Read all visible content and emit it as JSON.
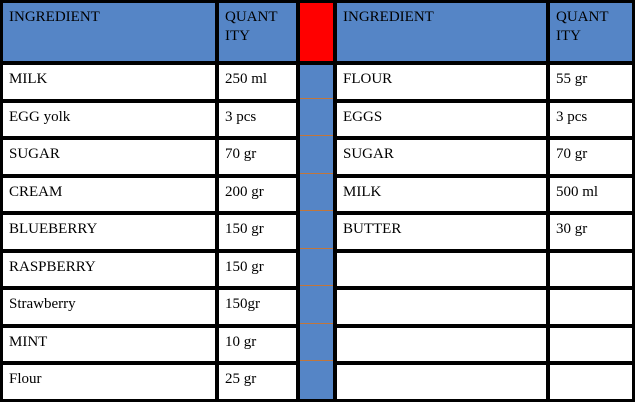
{
  "colors": {
    "table_header_blue": "#5585C6",
    "divider_red": "#FF0000",
    "divider_blue": "#5585C6",
    "divider_separator_orange": "#C0763C",
    "grid_border_black": "#000000",
    "cell_white": "#FFFFFF"
  },
  "left_table": {
    "headers": {
      "ingredient": "INGREDIENT",
      "quantity": "QUANTITY"
    },
    "rows": [
      {
        "ingredient": "MILK",
        "quantity": "250 ml"
      },
      {
        "ingredient": "EGG yolk",
        "quantity": "3 pcs"
      },
      {
        "ingredient": "SUGAR",
        "quantity": "70 gr"
      },
      {
        "ingredient": "CREAM",
        "quantity": "200 gr"
      },
      {
        "ingredient": "BLUEBERRY",
        "quantity": "150 gr"
      },
      {
        "ingredient": "RASPBERRY",
        "quantity": "150 gr"
      },
      {
        "ingredient": "Strawberry",
        "quantity": "150gr"
      },
      {
        "ingredient": "MINT",
        "quantity": "10 gr"
      },
      {
        "ingredient": "Flour",
        "quantity": "25 gr"
      }
    ]
  },
  "right_table": {
    "headers": {
      "ingredient": "INGREDIENT",
      "quantity": "QUANTITY"
    },
    "rows": [
      {
        "ingredient": "FLOUR",
        "quantity": "55 gr"
      },
      {
        "ingredient": "EGGS",
        "quantity": "3 pcs"
      },
      {
        "ingredient": "SUGAR",
        "quantity": "70 gr"
      },
      {
        "ingredient": "MILK",
        "quantity": "500 ml"
      },
      {
        "ingredient": "BUTTER",
        "quantity": "30 gr"
      },
      {
        "ingredient": "",
        "quantity": ""
      },
      {
        "ingredient": "",
        "quantity": ""
      },
      {
        "ingredient": "",
        "quantity": ""
      },
      {
        "ingredient": "",
        "quantity": ""
      }
    ]
  }
}
